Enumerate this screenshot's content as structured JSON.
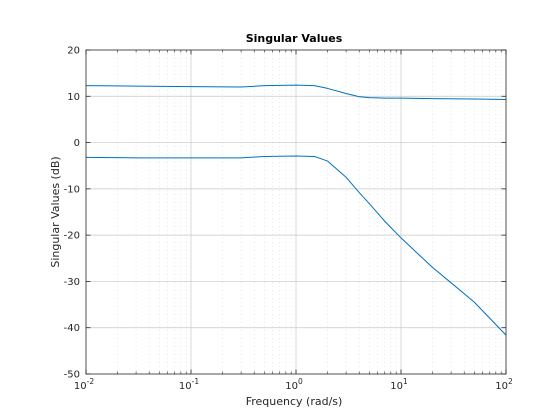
{
  "chart_data": {
    "type": "line",
    "title": "Singular Values",
    "xlabel": "Frequency (rad/s)",
    "ylabel": "Singular Values (dB)",
    "xscale": "log",
    "xlim": [
      0.01,
      100
    ],
    "ylim": [
      -50,
      20
    ],
    "grid": true,
    "legend": "none",
    "line_color": "#0072BD",
    "x_ticks": [
      {
        "base": "10",
        "exp": "-2"
      },
      {
        "base": "10",
        "exp": "-1"
      },
      {
        "base": "10",
        "exp": "0"
      },
      {
        "base": "10",
        "exp": "1"
      },
      {
        "base": "10",
        "exp": "2"
      }
    ],
    "y_ticks": [
      "20",
      "10",
      "0",
      "-10",
      "-20",
      "-30",
      "-40",
      "-50"
    ],
    "series": [
      {
        "x": [
          0.01,
          0.03,
          0.1,
          0.3,
          0.5,
          1,
          1.5,
          2,
          3,
          4,
          5,
          7,
          10,
          20,
          50,
          100
        ],
        "y": [
          12.3,
          12.2,
          12.1,
          12.0,
          12.3,
          12.4,
          12.3,
          11.7,
          10.6,
          9.9,
          9.7,
          9.6,
          9.6,
          9.5,
          9.4,
          9.3
        ]
      },
      {
        "x": [
          0.01,
          0.03,
          0.1,
          0.3,
          0.5,
          1,
          1.5,
          2,
          3,
          4,
          5,
          7,
          10,
          20,
          30,
          50,
          100
        ],
        "y": [
          -3.2,
          -3.3,
          -3.3,
          -3.3,
          -3.0,
          -2.9,
          -3.0,
          -4.0,
          -7.5,
          -10.8,
          -13.2,
          -17.0,
          -20.6,
          -27.0,
          -30.3,
          -34.5,
          -41.6
        ]
      }
    ]
  }
}
